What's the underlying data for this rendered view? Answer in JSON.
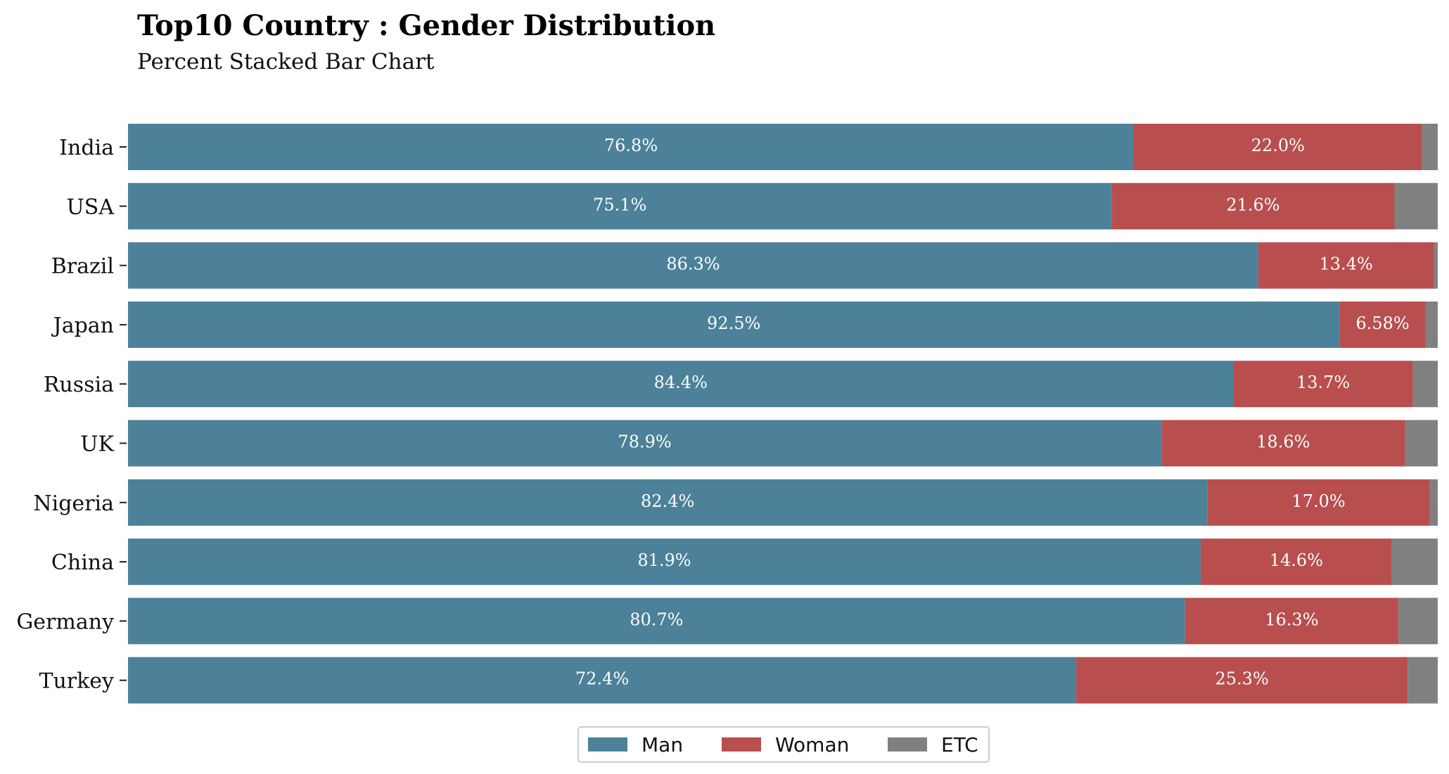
{
  "chart_data": {
    "type": "bar",
    "orientation": "horizontal",
    "stacked": "percent",
    "title": "Top10 Country : Gender Distribution",
    "subtitle": "Percent Stacked Bar Chart",
    "categories": [
      "India",
      "USA",
      "Brazil",
      "Japan",
      "Russia",
      "UK",
      "Nigeria",
      "China",
      "Germany",
      "Turkey"
    ],
    "series": [
      {
        "name": "Man",
        "color": "#4c8199",
        "values": [
          76.8,
          75.1,
          86.3,
          92.5,
          84.4,
          78.9,
          82.4,
          81.9,
          80.7,
          72.4
        ],
        "labels": [
          "76.8%",
          "75.1%",
          "86.3%",
          "92.5%",
          "84.4%",
          "78.9%",
          "82.4%",
          "81.9%",
          "80.7%",
          "72.4%"
        ]
      },
      {
        "name": "Woman",
        "color": "#b84e4e",
        "values": [
          22.0,
          21.6,
          13.4,
          6.58,
          13.7,
          18.6,
          17.0,
          14.6,
          16.3,
          25.3
        ],
        "labels": [
          "22.0%",
          "21.6%",
          "13.4%",
          "6.58%",
          "13.7%",
          "18.6%",
          "17.0%",
          "14.6%",
          "16.3%",
          "25.3%"
        ]
      },
      {
        "name": "ETC",
        "color": "#808080",
        "values": [
          1.2,
          3.3,
          0.3,
          0.92,
          1.9,
          2.5,
          0.6,
          3.5,
          3.0,
          2.3
        ]
      }
    ],
    "xlim": [
      0,
      100
    ],
    "grid": false,
    "legend_position": "bottom-center"
  }
}
